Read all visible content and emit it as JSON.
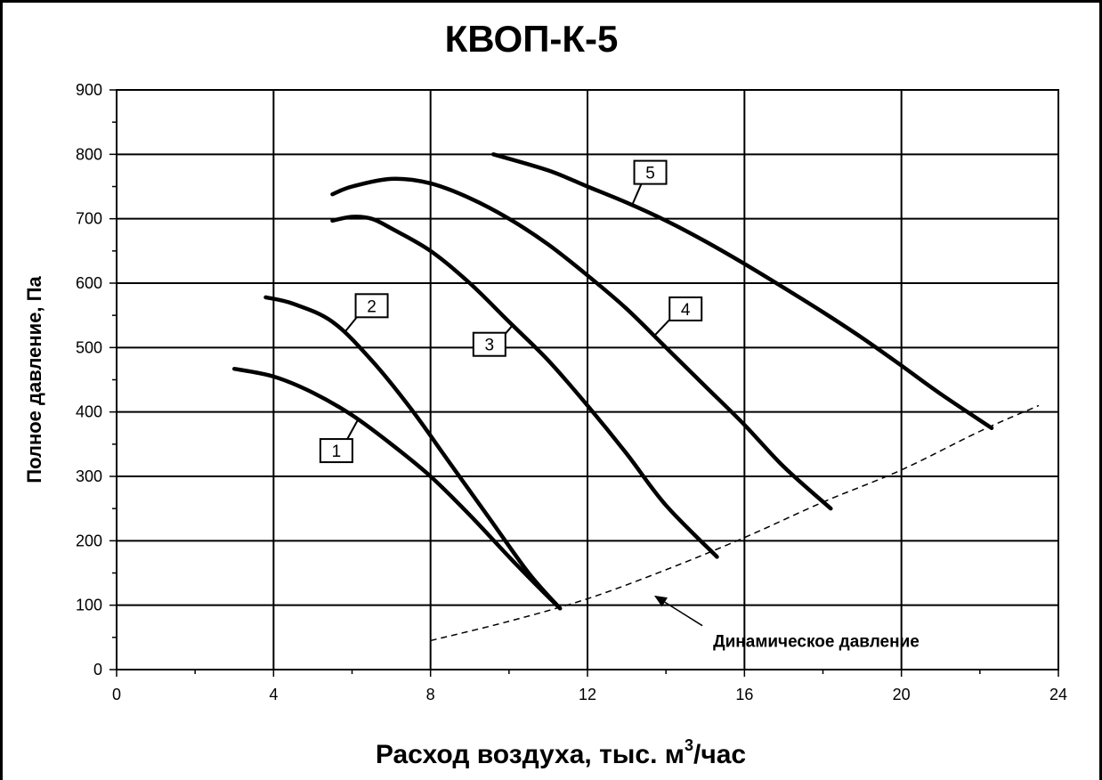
{
  "chart_data": {
    "type": "line",
    "title": "КВОП-К-5",
    "xlabel": "Расход воздуха, тыс. м",
    "xlabel_sup": "3",
    "xlabel_suffix": "/час",
    "ylabel": "Полное давление, Па",
    "xlim": [
      0,
      24
    ],
    "ylim": [
      0,
      900
    ],
    "x_ticks": [
      0,
      4,
      8,
      12,
      16,
      20,
      24
    ],
    "y_ticks": [
      0,
      100,
      200,
      300,
      400,
      500,
      600,
      700,
      800,
      900
    ],
    "grid": true,
    "series": [
      {
        "name": "1",
        "label_pos": [
          5.6,
          340
        ],
        "x": [
          3.0,
          4.0,
          5.0,
          6.0,
          7.0,
          8.0,
          9.0,
          10.0,
          10.8,
          11.3
        ],
        "y": [
          467,
          455,
          430,
          395,
          350,
          300,
          240,
          175,
          125,
          95
        ]
      },
      {
        "name": "2",
        "label_pos": [
          6.5,
          565
        ],
        "x": [
          3.8,
          4.5,
          5.5,
          6.5,
          7.5,
          8.5,
          9.5,
          10.5,
          11.3
        ],
        "y": [
          578,
          568,
          540,
          480,
          405,
          320,
          235,
          150,
          95
        ]
      },
      {
        "name": "3",
        "label_pos": [
          9.5,
          505
        ],
        "x": [
          5.5,
          6.0,
          6.5,
          7.0,
          8.0,
          9.0,
          10.0,
          11.0,
          12.0,
          13.0,
          14.0,
          15.3
        ],
        "y": [
          697,
          703,
          700,
          685,
          650,
          600,
          540,
          480,
          410,
          335,
          255,
          175
        ]
      },
      {
        "name": "4",
        "label_pos": [
          14.5,
          560
        ],
        "x": [
          5.5,
          6.0,
          7.0,
          8.0,
          9.0,
          10.0,
          11.0,
          12.0,
          13.0,
          14.0,
          15.0,
          16.0,
          17.0,
          18.2
        ],
        "y": [
          738,
          750,
          762,
          755,
          732,
          700,
          660,
          612,
          560,
          500,
          440,
          380,
          315,
          250
        ]
      },
      {
        "name": "5",
        "label_pos": [
          13.6,
          772
        ],
        "x": [
          9.6,
          11.0,
          12.0,
          13.0,
          14.0,
          15.0,
          16.0,
          17.0,
          18.0,
          19.0,
          20.0,
          21.0,
          22.3
        ],
        "y": [
          800,
          775,
          750,
          725,
          697,
          665,
          630,
          593,
          555,
          515,
          472,
          428,
          375
        ]
      },
      {
        "name": "Динамическое давление",
        "dashed": true,
        "x": [
          8.0,
          10.0,
          12.0,
          14.0,
          16.0,
          18.0,
          20.0,
          22.0,
          23.5
        ],
        "y": [
          45,
          75,
          110,
          155,
          205,
          260,
          310,
          370,
          410
        ]
      }
    ],
    "annotation": {
      "text": "Динамическое давление",
      "point": [
        13.7,
        115
      ],
      "text_pos": [
        15.2,
        35
      ]
    }
  }
}
